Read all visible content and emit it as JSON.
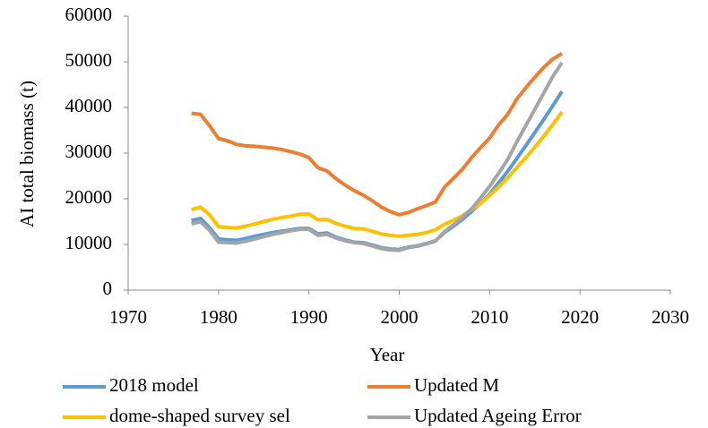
{
  "chart_data": {
    "type": "line",
    "x_label": "Year",
    "y_label": "AI total biomass (t)",
    "x": [
      1977,
      1978,
      1979,
      1980,
      1981,
      1982,
      1983,
      1984,
      1985,
      1986,
      1987,
      1988,
      1989,
      1990,
      1991,
      1992,
      1993,
      1994,
      1995,
      1996,
      1997,
      1998,
      1999,
      2000,
      2001,
      2002,
      2003,
      2004,
      2005,
      2006,
      2007,
      2008,
      2009,
      2010,
      2011,
      2012,
      2013,
      2014,
      2015,
      2016,
      2017,
      2018
    ],
    "series": [
      {
        "name": "2018 model",
        "color": "#5b9bd5",
        "values": [
          15200,
          15700,
          13700,
          11200,
          11000,
          10900,
          11300,
          11800,
          12200,
          12600,
          12900,
          13200,
          13500,
          13500,
          12300,
          12500,
          11600,
          11000,
          10500,
          10400,
          9900,
          9300,
          9000,
          8900,
          9400,
          9700,
          10200,
          10800,
          12600,
          14000,
          15500,
          17200,
          19000,
          21000,
          23500,
          26000,
          28800,
          31600,
          34500,
          37400,
          40400,
          43500
        ]
      },
      {
        "name": "Updated M",
        "color": "#ed7d31",
        "values": [
          38700,
          38500,
          36000,
          33200,
          32700,
          31900,
          31600,
          31500,
          31300,
          31100,
          30800,
          30300,
          29800,
          29000,
          26800,
          26100,
          24400,
          23000,
          21800,
          20800,
          19600,
          18200,
          17200,
          16500,
          17000,
          17800,
          18500,
          19300,
          22500,
          24500,
          26500,
          29000,
          31200,
          33300,
          36200,
          38500,
          41800,
          44300,
          46600,
          48800,
          50600,
          51800
        ]
      },
      {
        "name": "dome-shaped survey sel",
        "color": "#ffc000",
        "values": [
          17600,
          18200,
          16500,
          13900,
          13700,
          13600,
          14000,
          14500,
          15000,
          15500,
          15900,
          16200,
          16600,
          16700,
          15400,
          15500,
          14600,
          14000,
          13500,
          13400,
          12900,
          12300,
          12000,
          11800,
          12000,
          12200,
          12600,
          13200,
          14400,
          15300,
          16300,
          17600,
          19000,
          20700,
          22600,
          24600,
          26800,
          29000,
          31300,
          33700,
          36300,
          39000
        ]
      },
      {
        "name": "Updated Ageing Error",
        "color": "#a5a5a5",
        "values": [
          14500,
          15000,
          13100,
          10500,
          10400,
          10300,
          10700,
          11200,
          11700,
          12200,
          12600,
          13000,
          13300,
          13300,
          12000,
          12200,
          11400,
          10800,
          10400,
          10200,
          9700,
          9100,
          8800,
          8700,
          9300,
          9600,
          10100,
          10700,
          12800,
          14300,
          16000,
          17800,
          20200,
          22700,
          25600,
          28600,
          32400,
          36000,
          39600,
          43200,
          46800,
          49800
        ]
      }
    ],
    "xlim": [
      1970,
      2030
    ],
    "xticks": [
      1970,
      1980,
      1990,
      2000,
      2010,
      2020,
      2030
    ],
    "ylim": [
      0,
      60000
    ],
    "yticks": [
      0,
      10000,
      20000,
      30000,
      40000,
      50000,
      60000
    ],
    "grid": false,
    "legend": "bottom"
  }
}
